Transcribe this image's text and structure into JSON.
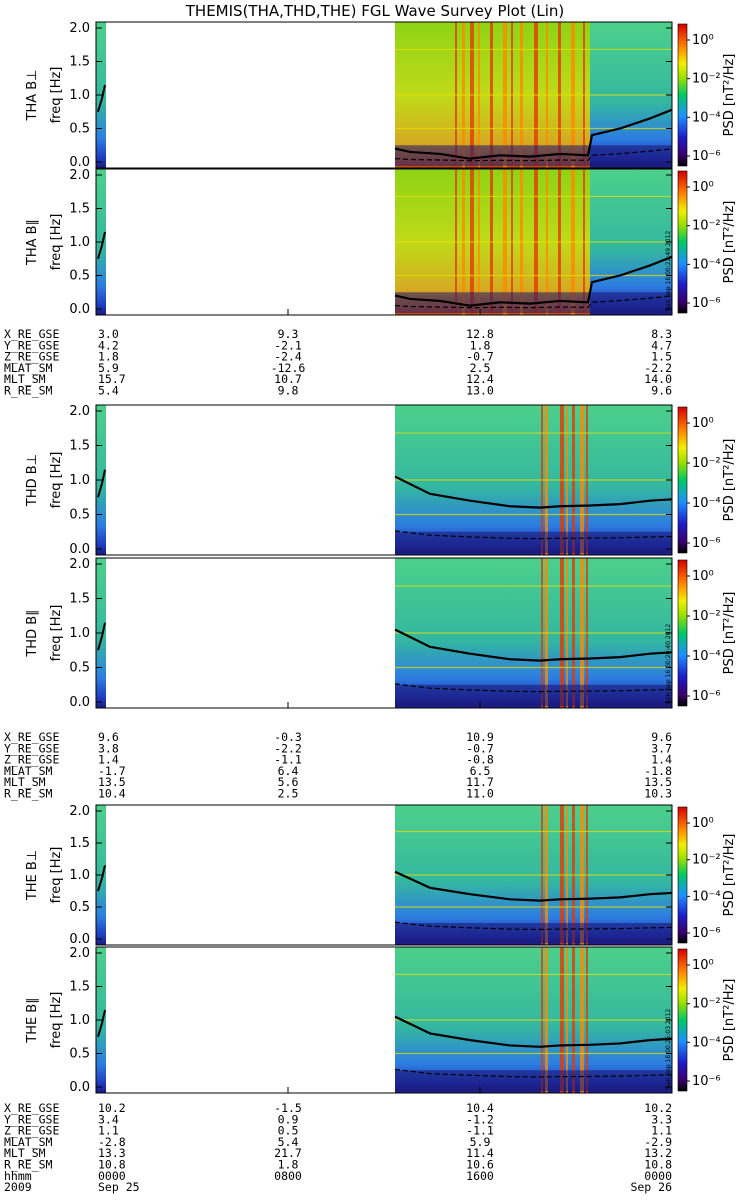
{
  "title": "THEMIS(THA,THD,THE) FGL Wave Survey Plot (Lin)",
  "chart_data": {
    "type": "heatmap",
    "x_axis": {
      "label_rows": [
        "hhmm",
        "2009"
      ],
      "ticks": [
        {
          "time": "0000",
          "date": "Sep 25"
        },
        {
          "time": "0800",
          "date": ""
        },
        {
          "time": "1600",
          "date": ""
        },
        {
          "time": "0000",
          "date": "Sep 26"
        }
      ]
    },
    "y_axis": {
      "unit_label": "freq [Hz]",
      "range": [
        0.0,
        2.0
      ],
      "ticks": [
        "0.0",
        "0.5",
        "1.0",
        "1.5",
        "2.0"
      ]
    },
    "colorbar": {
      "label": "PSD [nT²/Hz]",
      "ticks": [
        "10⁰",
        "10⁻²",
        "10⁻⁴",
        "10⁻⁶"
      ],
      "log_range": [
        -7,
        1
      ]
    },
    "panels": [
      {
        "probe": "THA",
        "component": "THA B⊥",
        "stamp": ""
      },
      {
        "probe": "THA",
        "component": "THA B∥",
        "stamp": "Sun Sep 16 00:22:49 2012"
      },
      {
        "probe": "THD",
        "component": "THD B⊥",
        "stamp": ""
      },
      {
        "probe": "THD",
        "component": "THD B∥",
        "stamp": "Sun Sep 16 00:20:40 2012"
      },
      {
        "probe": "THE",
        "component": "THE B⊥",
        "stamp": ""
      },
      {
        "probe": "THE",
        "component": "THE B∥",
        "stamp": "Sun Sep 16 00:25:03 2012"
      }
    ],
    "ephemeris": [
      {
        "probe": "THA",
        "rows": [
          {
            "name": "X_RE_GSE",
            "values": [
              "3.0",
              "9.3",
              "12.8",
              "8.3"
            ]
          },
          {
            "name": "Y_RE_GSE",
            "values": [
              "4.2",
              "-2.1",
              "1.8",
              "4.7"
            ]
          },
          {
            "name": "Z_RE_GSE",
            "values": [
              "1.8",
              "-2.4",
              "-0.7",
              "1.5"
            ]
          },
          {
            "name": "MLAT_SM",
            "values": [
              "5.9",
              "-12.6",
              "2.5",
              "-2.2"
            ]
          },
          {
            "name": "MLT_SM",
            "values": [
              "15.7",
              "10.7",
              "12.4",
              "14.0"
            ]
          },
          {
            "name": "R_RE_SM",
            "values": [
              "5.4",
              "9.8",
              "13.0",
              "9.6"
            ]
          }
        ]
      },
      {
        "probe": "THD",
        "rows": [
          {
            "name": "X_RE_GSE",
            "values": [
              "9.6",
              "-0.3",
              "10.9",
              "9.6"
            ]
          },
          {
            "name": "Y_RE_GSE",
            "values": [
              "3.8",
              "-2.2",
              "-0.7",
              "3.7"
            ]
          },
          {
            "name": "Z_RE_GSE",
            "values": [
              "1.4",
              "-1.1",
              "-0.8",
              "1.4"
            ]
          },
          {
            "name": "MLAT_SM",
            "values": [
              "-1.7",
              "6.4",
              "6.5",
              "-1.8"
            ]
          },
          {
            "name": "MLT_SM",
            "values": [
              "13.5",
              "5.6",
              "11.7",
              "13.5"
            ]
          },
          {
            "name": "R_RE_SM",
            "values": [
              "10.4",
              "2.5",
              "11.0",
              "10.3"
            ]
          }
        ]
      },
      {
        "probe": "THE",
        "rows": [
          {
            "name": "X_RE_GSE",
            "values": [
              "10.2",
              "-1.5",
              "10.4",
              "10.2"
            ]
          },
          {
            "name": "Y_RE_GSE",
            "values": [
              "3.4",
              "0.9",
              "-1.2",
              "3.3"
            ]
          },
          {
            "name": "Z_RE_GSE",
            "values": [
              "1.1",
              "0.5",
              "-1.1",
              "1.1"
            ]
          },
          {
            "name": "MLAT_SM",
            "values": [
              "-2.8",
              "5.4",
              "5.9",
              "-2.9"
            ]
          },
          {
            "name": "MLT_SM",
            "values": [
              "13.3",
              "21.7",
              "11.4",
              "13.2"
            ]
          },
          {
            "name": "R_RE_SM",
            "values": [
              "10.8",
              "1.8",
              "10.6",
              "10.8"
            ]
          }
        ]
      }
    ]
  }
}
